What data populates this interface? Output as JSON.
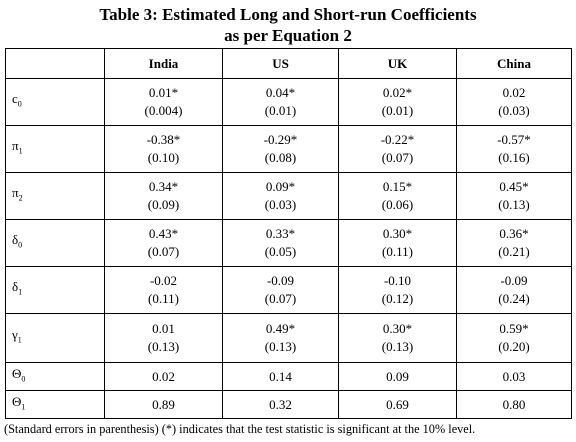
{
  "title": {
    "line1": "Table 3: Estimated Long and Short-run Coefficients",
    "line2": "as per Equation 2"
  },
  "table": {
    "columns": [
      "India",
      "US",
      "UK",
      "China"
    ],
    "rows": [
      {
        "label": {
          "symbol": "c",
          "sub": "0"
        },
        "cells": [
          [
            "0.01*",
            "(0.004)"
          ],
          [
            "0.04*",
            "(0.01)"
          ],
          [
            "0.02*",
            "(0.01)"
          ],
          [
            "0.02",
            "(0.03)"
          ]
        ]
      },
      {
        "label": {
          "symbol": "π",
          "sub": "1"
        },
        "cells": [
          [
            "-0.38*",
            "(0.10)"
          ],
          [
            "-0.29*",
            "(0.08)"
          ],
          [
            "-0.22*",
            "(0.07)"
          ],
          [
            "-0.57*",
            "(0.16)"
          ]
        ]
      },
      {
        "label": {
          "symbol": "π",
          "sub": "2"
        },
        "cells": [
          [
            "0.34*",
            "(0.09)"
          ],
          [
            "0.09*",
            "(0.03)"
          ],
          [
            "0.15*",
            "(0.06)"
          ],
          [
            "0.45*",
            "(0.13)"
          ]
        ]
      },
      {
        "label": {
          "symbol": "δ",
          "sub": "0"
        },
        "cells": [
          [
            "0.43*",
            "(0.07)"
          ],
          [
            "0.33*",
            "(0.05)"
          ],
          [
            "0.30*",
            "(0.11)"
          ],
          [
            "0.36*",
            "(0.21)"
          ]
        ]
      },
      {
        "label": {
          "symbol": "δ",
          "sub": "1"
        },
        "cells": [
          [
            "-0.02",
            "(0.11)"
          ],
          [
            "-0.09",
            "(0.07)"
          ],
          [
            "-0.10",
            "(0.12)"
          ],
          [
            "-0.09",
            "(0.24)"
          ]
        ]
      },
      {
        "label": {
          "symbol": "γ",
          "sub": "1"
        },
        "cells": [
          [
            "0.01",
            "(0.13)"
          ],
          [
            "0.49*",
            "(0.13)"
          ],
          [
            "0.30*",
            "(0.13)"
          ],
          [
            "0.59*",
            "(0.20)"
          ]
        ]
      },
      {
        "label": {
          "symbol": "Θ",
          "sub": "0"
        },
        "cells": [
          [
            "0.02"
          ],
          [
            "0.14"
          ],
          [
            "0.09"
          ],
          [
            "0.03"
          ]
        ]
      },
      {
        "label": {
          "symbol": "Θ",
          "sub": "1"
        },
        "cells": [
          [
            "0.89"
          ],
          [
            "0.32"
          ],
          [
            "0.69"
          ],
          [
            "0.80"
          ]
        ]
      }
    ]
  },
  "footnote": "(Standard errors in parenthesis) (*) indicates that the test statistic is significant at the 10% level."
}
